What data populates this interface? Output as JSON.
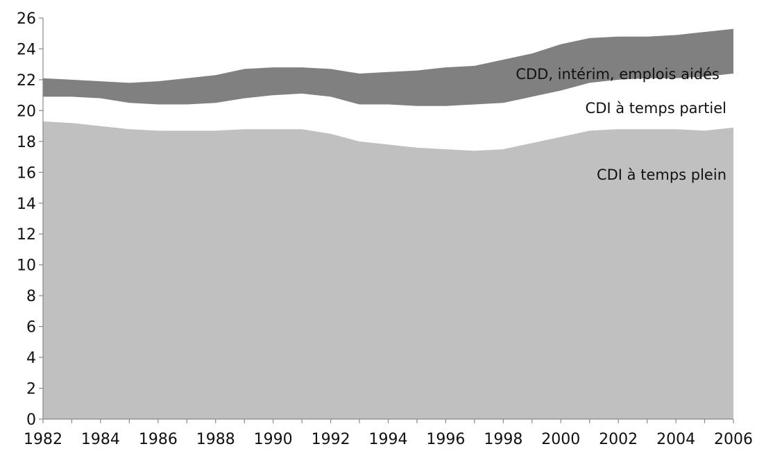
{
  "chart_data": {
    "type": "area",
    "stacked": true,
    "title": "",
    "xlabel": "",
    "ylabel": "",
    "grid": false,
    "legend": "inline labels",
    "xlim": [
      1982,
      2006
    ],
    "ylim": [
      0,
      26
    ],
    "x": [
      1982,
      1983,
      1984,
      1985,
      1986,
      1987,
      1988,
      1989,
      1990,
      1991,
      1992,
      1993,
      1994,
      1995,
      1996,
      1997,
      1998,
      1999,
      2000,
      2001,
      2002,
      2003,
      2004,
      2005,
      2006
    ],
    "x_tick_labels": [
      "1982",
      "1984",
      "1986",
      "1988",
      "1990",
      "1992",
      "1994",
      "1996",
      "1998",
      "2000",
      "2002",
      "2004",
      "2006"
    ],
    "y_tick_labels": [
      "0",
      "2",
      "4",
      "6",
      "8",
      "10",
      "12",
      "14",
      "16",
      "18",
      "20",
      "22",
      "24",
      "26"
    ],
    "series": [
      {
        "name": "CDI à temps plein",
        "color": "#c0c0c0",
        "values": [
          19.3,
          19.2,
          19.0,
          18.8,
          18.7,
          18.7,
          18.7,
          18.8,
          18.8,
          18.8,
          18.5,
          18.0,
          17.8,
          17.6,
          17.5,
          17.4,
          17.5,
          17.9,
          18.3,
          18.7,
          18.8,
          18.8,
          18.8,
          18.7,
          18.9
        ]
      },
      {
        "name": "CDI à temps partiel",
        "color": "#ffffff",
        "values": [
          1.6,
          1.7,
          1.8,
          1.7,
          1.7,
          1.7,
          1.8,
          2.0,
          2.2,
          2.3,
          2.4,
          2.4,
          2.6,
          2.7,
          2.8,
          3.0,
          3.0,
          3.0,
          3.0,
          3.1,
          3.2,
          3.3,
          3.3,
          3.5,
          3.5
        ]
      },
      {
        "name": "CDD, intérim, emplois aidés",
        "color": "#808080",
        "values": [
          1.2,
          1.1,
          1.1,
          1.3,
          1.5,
          1.7,
          1.8,
          1.9,
          1.8,
          1.7,
          1.8,
          2.0,
          2.1,
          2.3,
          2.5,
          2.5,
          2.8,
          2.8,
          3.0,
          2.9,
          2.8,
          2.7,
          2.8,
          2.9,
          2.9
        ]
      }
    ]
  }
}
